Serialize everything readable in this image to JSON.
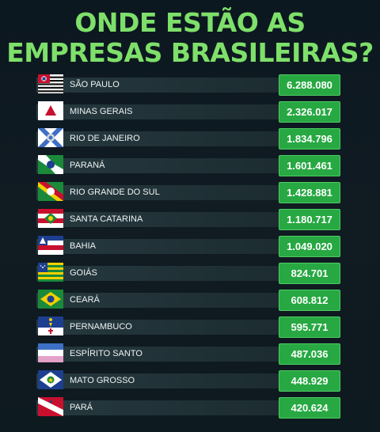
{
  "title_line1": "ONDE ESTÃO AS",
  "title_line2": "EMPRESAS BRASILEIRAS?",
  "colors": {
    "title": "#7ee06a",
    "value_box": "#27a842",
    "bar": "#26393f",
    "background": "#0f1a20"
  },
  "chart_data": {
    "type": "table",
    "title": "ONDE ESTÃO AS EMPRESAS BRASILEIRAS?",
    "rows": [
      {
        "state": "SÃO PAULO",
        "value": "6.288.080",
        "flag": "sao-paulo-flag-icon"
      },
      {
        "state": "MINAS GERAIS",
        "value": "2.326.017",
        "flag": "minas-gerais-flag-icon"
      },
      {
        "state": "RIO DE JANEIRO",
        "value": "1.834.796",
        "flag": "rio-de-janeiro-flag-icon"
      },
      {
        "state": "PARANÁ",
        "value": "1.601.461",
        "flag": "parana-flag-icon"
      },
      {
        "state": "RIO GRANDE DO SUL",
        "value": "1.428.881",
        "flag": "rio-grande-do-sul-flag-icon"
      },
      {
        "state": "SANTA CATARINA",
        "value": "1.180.717",
        "flag": "santa-catarina-flag-icon"
      },
      {
        "state": "BAHIA",
        "value": "1.049.020",
        "flag": "bahia-flag-icon"
      },
      {
        "state": "GOIÁS",
        "value": "824.701",
        "flag": "goias-flag-icon"
      },
      {
        "state": "CEARÁ",
        "value": "608.812",
        "flag": "ceara-flag-icon"
      },
      {
        "state": "PERNAMBUCO",
        "value": "595.771",
        "flag": "pernambuco-flag-icon"
      },
      {
        "state": "ESPÍRITO SANTO",
        "value": "487.036",
        "flag": "espirito-santo-flag-icon"
      },
      {
        "state": "MATO GROSSO",
        "value": "448.929",
        "flag": "mato-grosso-flag-icon"
      },
      {
        "state": "PARÁ",
        "value": "420.624",
        "flag": "para-flag-icon"
      }
    ]
  }
}
